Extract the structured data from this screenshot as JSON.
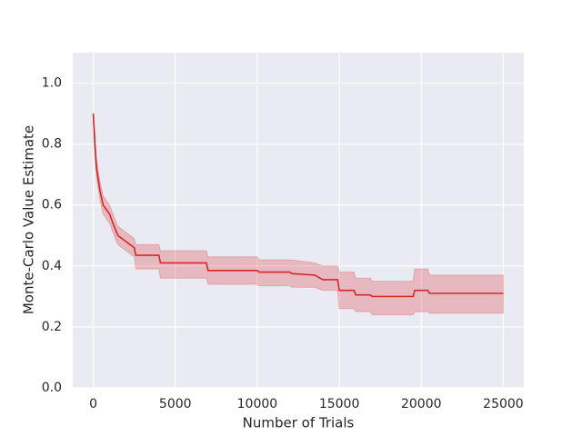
{
  "chart_data": {
    "type": "line",
    "x_label": "Number of Trials",
    "y_label": "Monte-Carlo Value Estimate",
    "x": [
      0,
      100,
      200,
      400,
      600,
      1000,
      1200,
      1500,
      2000,
      2500,
      2600,
      4000,
      4100,
      6900,
      7000,
      10000,
      10100,
      12000,
      12100,
      13500,
      14000,
      14900,
      15000,
      15900,
      16000,
      16900,
      17000,
      19500,
      19600,
      20400,
      20500,
      25000
    ],
    "series": [
      {
        "color": "#d62728",
        "values": [
          0.9,
          0.8,
          0.72,
          0.65,
          0.6,
          0.57,
          0.54,
          0.5,
          0.48,
          0.46,
          0.435,
          0.435,
          0.41,
          0.41,
          0.385,
          0.385,
          0.38,
          0.38,
          0.375,
          0.37,
          0.355,
          0.355,
          0.32,
          0.32,
          0.305,
          0.305,
          0.3,
          0.3,
          0.32,
          0.32,
          0.31,
          0.31
        ],
        "lower": [
          0.89,
          0.76,
          0.69,
          0.62,
          0.57,
          0.54,
          0.51,
          0.47,
          0.45,
          0.43,
          0.39,
          0.39,
          0.36,
          0.36,
          0.34,
          0.34,
          0.335,
          0.335,
          0.33,
          0.33,
          0.32,
          0.32,
          0.26,
          0.26,
          0.25,
          0.25,
          0.24,
          0.24,
          0.25,
          0.25,
          0.245,
          0.245
        ],
        "upper": [
          0.9,
          0.84,
          0.75,
          0.68,
          0.63,
          0.6,
          0.57,
          0.53,
          0.51,
          0.49,
          0.47,
          0.47,
          0.45,
          0.45,
          0.43,
          0.43,
          0.42,
          0.42,
          0.42,
          0.41,
          0.4,
          0.4,
          0.38,
          0.38,
          0.36,
          0.36,
          0.35,
          0.35,
          0.39,
          0.39,
          0.37,
          0.37
        ]
      }
    ],
    "xlim": [
      -1250,
      26250
    ],
    "ylim": [
      0,
      1.1
    ],
    "xticks": [
      0,
      5000,
      10000,
      15000,
      20000,
      25000
    ],
    "yticks": [
      {
        "value": 0,
        "label": "0.0"
      },
      {
        "value": 0.2,
        "label": "0.2"
      },
      {
        "value": 0.4,
        "label": "0.4"
      },
      {
        "value": 0.6,
        "label": "0.6"
      },
      {
        "value": 0.8,
        "label": "0.8"
      },
      {
        "value": 1.0,
        "label": "1.0"
      }
    ],
    "grid": true
  }
}
